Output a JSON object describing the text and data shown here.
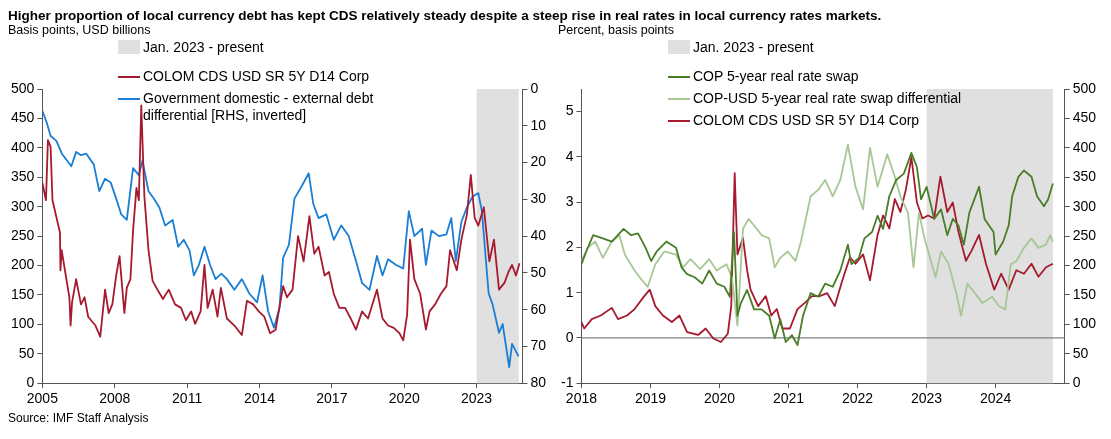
{
  "chart_data": [
    {
      "type": "line",
      "title": "Higher proportion of local currency debt has kept CDS relatively steady despite a steep rise in real rates in local currency rates markets.",
      "subtitle": "Basis points, USD billions",
      "annotations": [
        "Source: IMF Staff Analysis"
      ],
      "xlim": [
        2005,
        2024.9
      ],
      "xticks": [
        2005,
        2008,
        2011,
        2014,
        2017,
        2020,
        2023
      ],
      "ylim": [
        0,
        500
      ],
      "yticks": [
        0,
        50,
        100,
        150,
        200,
        250,
        300,
        350,
        400,
        450,
        500
      ],
      "y2lim": [
        80,
        0
      ],
      "y2ticks": [
        0,
        10,
        20,
        30,
        40,
        50,
        60,
        70,
        80
      ],
      "grid": false,
      "legend": "top",
      "marker": "none",
      "bands": [
        {
          "axis": "x",
          "from": 2023,
          "to": 2024.75,
          "label": "Jan. 2023 - present",
          "color": "#e0e0e0"
        }
      ],
      "series": [
        {
          "name": "COLOM CDS USD SR 5Y D14 Corp",
          "color": "#a6192e",
          "x": [
            2005.0,
            2005.15,
            2005.23,
            2005.34,
            2005.42,
            2005.73,
            2005.75,
            2005.8,
            2006.12,
            2006.17,
            2006.23,
            2006.4,
            2006.6,
            2006.75,
            2006.9,
            2007.2,
            2007.4,
            2007.6,
            2007.75,
            2007.9,
            2008.06,
            2008.2,
            2008.4,
            2008.5,
            2008.65,
            2008.76,
            2008.9,
            2009.0,
            2009.1,
            2009.23,
            2009.4,
            2009.57,
            2009.77,
            2010.0,
            2010.24,
            2010.5,
            2010.75,
            2010.95,
            2011.17,
            2011.33,
            2011.56,
            2011.72,
            2011.85,
            2012.06,
            2012.26,
            2012.4,
            2012.65,
            2012.96,
            2013.27,
            2013.48,
            2013.74,
            2013.97,
            2014.2,
            2014.44,
            2014.67,
            2014.98,
            2015.14,
            2015.37,
            2015.6,
            2015.83,
            2016.07,
            2016.27,
            2016.45,
            2016.7,
            2016.88,
            2017.08,
            2017.31,
            2017.55,
            2017.78,
            2018.0,
            2018.25,
            2018.5,
            2018.87,
            2019.1,
            2019.33,
            2019.57,
            2019.8,
            2019.96,
            2020.12,
            2020.24,
            2020.42,
            2020.66,
            2020.9,
            2021.05,
            2021.28,
            2021.52,
            2021.75,
            2021.9,
            2022.18,
            2022.37,
            2022.6,
            2022.76,
            2022.92,
            2023.07,
            2023.3,
            2023.53,
            2023.72,
            2023.93,
            2024.16,
            2024.32,
            2024.47,
            2024.63,
            2024.78
          ],
          "values": [
            341,
            311,
            413,
            402,
            311,
            256,
            192,
            226,
            146,
            98,
            137,
            177,
            134,
            146,
            113,
            98,
            79,
            159,
            119,
            134,
            183,
            216,
            119,
            162,
            177,
            259,
            332,
            311,
            472,
            317,
            226,
            174,
            159,
            143,
            159,
            134,
            128,
            107,
            122,
            101,
            122,
            201,
            128,
            159,
            113,
            162,
            110,
            98,
            82,
            140,
            134,
            122,
            113,
            85,
            91,
            165,
            146,
            159,
            250,
            207,
            284,
            220,
            232,
            183,
            189,
            152,
            128,
            128,
            110,
            91,
            122,
            110,
            159,
            110,
            98,
            94,
            85,
            73,
            116,
            244,
            177,
            152,
            91,
            122,
            134,
            152,
            165,
            226,
            192,
            244,
            287,
            354,
            281,
            268,
            299,
            207,
            244,
            159,
            171,
            189,
            201,
            183,
            204
          ]
        },
        {
          "name": "Government domestic - external debt differential [RHS, inverted]",
          "color": "#1a7fd4",
          "axis": "y2",
          "x": [
            2005.0,
            2005.19,
            2005.34,
            2005.58,
            2005.81,
            2006.2,
            2006.4,
            2006.6,
            2006.82,
            2007.13,
            2007.36,
            2007.6,
            2007.83,
            2008.06,
            2008.27,
            2008.5,
            2008.76,
            2009.0,
            2009.15,
            2009.4,
            2009.62,
            2009.85,
            2010.09,
            2010.4,
            2010.63,
            2010.86,
            2011.1,
            2011.28,
            2011.49,
            2011.72,
            2011.95,
            2012.18,
            2012.42,
            2012.65,
            2012.96,
            2013.27,
            2013.58,
            2013.9,
            2014.13,
            2014.36,
            2014.6,
            2014.83,
            2014.98,
            2015.22,
            2015.45,
            2015.76,
            2016.04,
            2016.23,
            2016.45,
            2016.77,
            2017.08,
            2017.39,
            2017.7,
            2018.0,
            2018.25,
            2018.56,
            2018.87,
            2019.1,
            2019.33,
            2019.65,
            2019.96,
            2020.19,
            2020.42,
            2020.74,
            2020.9,
            2021.13,
            2021.44,
            2021.75,
            2021.95,
            2022.14,
            2022.37,
            2022.6,
            2022.83,
            2023.07,
            2023.22,
            2023.5,
            2023.66,
            2023.93,
            2024.08,
            2024.35,
            2024.47,
            2024.74
          ],
          "values": [
            5.9,
            9.3,
            12.7,
            14.1,
            17.6,
            21,
            17.1,
            18,
            17.6,
            20.5,
            27.8,
            24.4,
            25.4,
            29.8,
            34.1,
            35.6,
            21.5,
            23.4,
            19.5,
            27.8,
            29.8,
            32.2,
            37.1,
            35.6,
            42.9,
            41,
            43.9,
            50.7,
            47.8,
            42.9,
            47.8,
            51.7,
            50.2,
            51.7,
            54.6,
            51.7,
            55.6,
            58,
            50.7,
            60.5,
            64.9,
            59.5,
            45.9,
            42.4,
            29.8,
            26.3,
            22.9,
            31.2,
            35.1,
            34.1,
            41,
            37.1,
            40,
            46.8,
            52.7,
            54.6,
            45.4,
            50.7,
            46.3,
            47.8,
            48.8,
            33.2,
            40,
            38,
            47.8,
            38.5,
            40,
            39.5,
            35.1,
            46.8,
            36.1,
            32.2,
            29.3,
            28.3,
            33.2,
            55.6,
            58.5,
            66.3,
            63.9,
            75.6,
            69.3,
            72.7
          ]
        }
      ]
    },
    {
      "type": "line",
      "subtitle": "Percent, basis points",
      "xlim": [
        2018,
        2025
      ],
      "xticks": [
        2018,
        2019,
        2020,
        2021,
        2022,
        2023,
        2024
      ],
      "ylim": [
        -1,
        5.5
      ],
      "yticks": [
        -1,
        0,
        1,
        2,
        3,
        4,
        5
      ],
      "y2lim": [
        0,
        500
      ],
      "y2ticks": [
        0,
        50,
        100,
        150,
        200,
        250,
        300,
        350,
        400,
        450,
        500
      ],
      "grid": false,
      "legend": "top",
      "marker": "none",
      "ref_lines": [
        {
          "axis": "y",
          "value": 0,
          "color": "#808080"
        }
      ],
      "bands": [
        {
          "axis": "x",
          "from": 2023,
          "to": 2024.83,
          "label": "Jan. 2023 - present",
          "color": "#e0e0e0"
        }
      ],
      "series": [
        {
          "name": "COP 5-year real rate swap",
          "color": "#4a7d27",
          "x": [
            2018.0,
            2018.07,
            2018.17,
            2018.31,
            2018.44,
            2018.61,
            2018.72,
            2018.82,
            2018.93,
            2019.01,
            2019.09,
            2019.23,
            2019.37,
            2019.45,
            2019.53,
            2019.64,
            2019.75,
            2019.85,
            2019.96,
            2020.07,
            2020.15,
            2020.21,
            2020.26,
            2020.31,
            2020.4,
            2020.5,
            2020.61,
            2020.72,
            2020.8,
            2020.88,
            2020.96,
            2021.05,
            2021.13,
            2021.21,
            2021.32,
            2021.43,
            2021.53,
            2021.64,
            2021.75,
            2021.86,
            2021.91,
            2022.02,
            2022.1,
            2022.21,
            2022.29,
            2022.37,
            2022.46,
            2022.56,
            2022.67,
            2022.78,
            2022.86,
            2022.92,
            2023.0,
            2023.11,
            2023.21,
            2023.3,
            2023.38,
            2023.46,
            2023.54,
            2023.62,
            2023.76,
            2023.84,
            2023.97,
            2024.0,
            2024.11,
            2024.19,
            2024.24,
            2024.33,
            2024.41,
            2024.52,
            2024.6,
            2024.7,
            2024.76,
            2024.83
          ],
          "values": [
            1.63,
            1.91,
            2.27,
            2.2,
            2.13,
            2.41,
            2.27,
            2.31,
            1.99,
            1.7,
            1.91,
            2.13,
            1.99,
            1.56,
            1.41,
            1.34,
            1.2,
            1.49,
            1.2,
            1.13,
            0.91,
            2.34,
            0.49,
            0.77,
            1.06,
            0.63,
            0.63,
            0.49,
            -0.01,
            0.41,
            -0.09,
            0.06,
            -0.16,
            0.49,
            0.99,
            0.91,
            1.2,
            1.13,
            1.49,
            2.06,
            1.63,
            1.77,
            2.2,
            2.34,
            2.7,
            2.41,
            3.13,
            3.49,
            3.63,
            4.09,
            3.77,
            3.06,
            3.34,
            2.63,
            2.84,
            2.27,
            2.63,
            2.49,
            2.06,
            2.77,
            3.34,
            2.63,
            2.34,
            1.84,
            2.13,
            2.49,
            3.13,
            3.56,
            3.7,
            3.56,
            3.13,
            2.91,
            3.06,
            3.41
          ]
        },
        {
          "name": "COP-USD 5-year real rate swap differential",
          "color": "#a8c795",
          "x": [
            2018.0,
            2018.09,
            2018.2,
            2018.31,
            2018.44,
            2018.55,
            2018.63,
            2018.77,
            2018.88,
            2018.96,
            2019.07,
            2019.2,
            2019.37,
            2019.47,
            2019.58,
            2019.72,
            2019.85,
            2019.96,
            2020.1,
            2020.18,
            2020.26,
            2020.34,
            2020.42,
            2020.5,
            2020.61,
            2020.72,
            2020.8,
            2020.88,
            2020.99,
            2021.1,
            2021.18,
            2021.32,
            2021.43,
            2021.53,
            2021.64,
            2021.75,
            2021.86,
            2021.97,
            2022.08,
            2022.18,
            2022.29,
            2022.43,
            2022.54,
            2022.62,
            2022.73,
            2022.81,
            2022.89,
            2022.97,
            2023.05,
            2023.13,
            2023.21,
            2023.32,
            2023.43,
            2023.5,
            2023.59,
            2023.7,
            2023.81,
            2023.95,
            2024.05,
            2024.14,
            2024.22,
            2024.3,
            2024.41,
            2024.52,
            2024.62,
            2024.73,
            2024.79,
            2024.83
          ],
          "values": [
            1.7,
            1.99,
            2.13,
            1.77,
            2.13,
            2.27,
            1.84,
            1.49,
            1.27,
            1.13,
            1.63,
            1.91,
            1.84,
            1.56,
            1.74,
            1.52,
            1.74,
            1.49,
            1.63,
            1.34,
            0.27,
            2.41,
            2.63,
            2.49,
            2.27,
            2.2,
            1.56,
            1.77,
            1.91,
            1.7,
            2.13,
            3.13,
            3.27,
            3.49,
            3.13,
            3.49,
            4.27,
            3.34,
            2.84,
            4.2,
            3.34,
            4.06,
            3.56,
            3.13,
            2.77,
            1.56,
            2.77,
            2.2,
            1.77,
            1.34,
            1.91,
            1.63,
            0.99,
            0.49,
            1.2,
            0.99,
            0.77,
            0.91,
            0.7,
            0.63,
            1.63,
            1.7,
            1.99,
            2.2,
            1.99,
            2.06,
            2.27,
            2.13
          ]
        },
        {
          "name": "COLOM CDS USD SR 5Y D14 Corp",
          "color": "#a6192e",
          "axis": "y2",
          "x": [
            2018.0,
            2018.04,
            2018.15,
            2018.28,
            2018.44,
            2018.53,
            2018.66,
            2018.77,
            2018.91,
            2018.99,
            2019.07,
            2019.18,
            2019.31,
            2019.42,
            2019.53,
            2019.69,
            2019.8,
            2019.91,
            2020.02,
            2020.12,
            2020.17,
            2020.22,
            2020.26,
            2020.34,
            2020.4,
            2020.45,
            2020.56,
            2020.67,
            2020.75,
            2020.83,
            2020.91,
            2021.02,
            2021.13,
            2021.24,
            2021.34,
            2021.45,
            2021.56,
            2021.67,
            2021.78,
            2021.89,
            2021.97,
            2022.08,
            2022.18,
            2022.29,
            2022.37,
            2022.46,
            2022.54,
            2022.62,
            2022.7,
            2022.78,
            2022.86,
            2022.94,
            2023.02,
            2023.11,
            2023.2,
            2023.3,
            2023.38,
            2023.46,
            2023.57,
            2023.65,
            2023.76,
            2023.86,
            2023.98,
            2024.08,
            2024.19,
            2024.3,
            2024.41,
            2024.52,
            2024.62,
            2024.73,
            2024.83
          ],
          "values": [
            104,
            93,
            109,
            115,
            128,
            109,
            115,
            126,
            148,
            159,
            131,
            115,
            104,
            115,
            87,
            82,
            93,
            76,
            70,
            84,
            131,
            357,
            219,
            247,
            192,
            159,
            131,
            148,
            115,
            126,
            93,
            93,
            126,
            137,
            148,
            148,
            153,
            131,
            175,
            214,
            203,
            219,
            175,
            252,
            285,
            263,
            313,
            291,
            329,
            384,
            307,
            280,
            285,
            280,
            351,
            291,
            307,
            258,
            208,
            225,
            252,
            203,
            159,
            186,
            159,
            192,
            186,
            203,
            181,
            197,
            203
          ]
        }
      ]
    }
  ]
}
